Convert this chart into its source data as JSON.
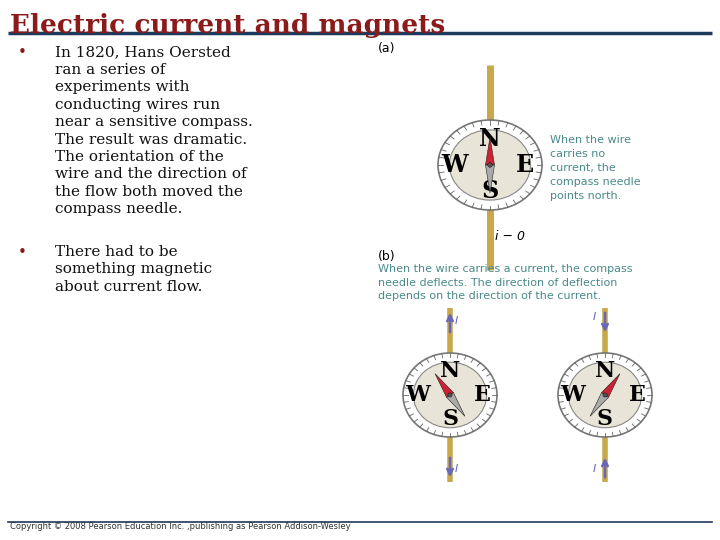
{
  "title": "Electric current and magnets",
  "title_color": "#8B1A1A",
  "title_fontsize": 19,
  "bg_color": "#FFFFFF",
  "header_line_color": "#1C3A5C",
  "bullet1_lines": [
    "In 1820, Hans Oersted",
    "ran a series of",
    "experiments with",
    "conducting wires run",
    "near a sensitive compass.",
    "The result was dramatic.",
    "The orientation of the",
    "wire and the direction of",
    "the flow both moved the",
    "compass needle."
  ],
  "bullet2_lines": [
    "There had to be",
    "something magnetic",
    "about current flow."
  ],
  "label_a": "(a)",
  "label_b": "(b)",
  "caption_a": "When the wire\ncarries no\ncurrent, the\ncompass needle\npoints north.",
  "caption_b": "When the wire carries a current, the compass\nneedle deflects. The direction of deflection\ndepends on the direction of the current.",
  "formula": "i − 0",
  "copyright": "Copyright © 2008 Pearson Education Inc. ,publishing as Pearson Addison-Wesley",
  "needle_red": "#CC2233",
  "needle_gray": "#AAAAAA",
  "wire_color": "#C8A84B",
  "arrow_color": "#6666BB",
  "text_teal": "#4A8A8A",
  "body_text_color": "#111111",
  "bullet_color": "#8B1A1A",
  "compass_outer_color": "#DDDDCC",
  "compass_inner_color": "#E8E4D8"
}
